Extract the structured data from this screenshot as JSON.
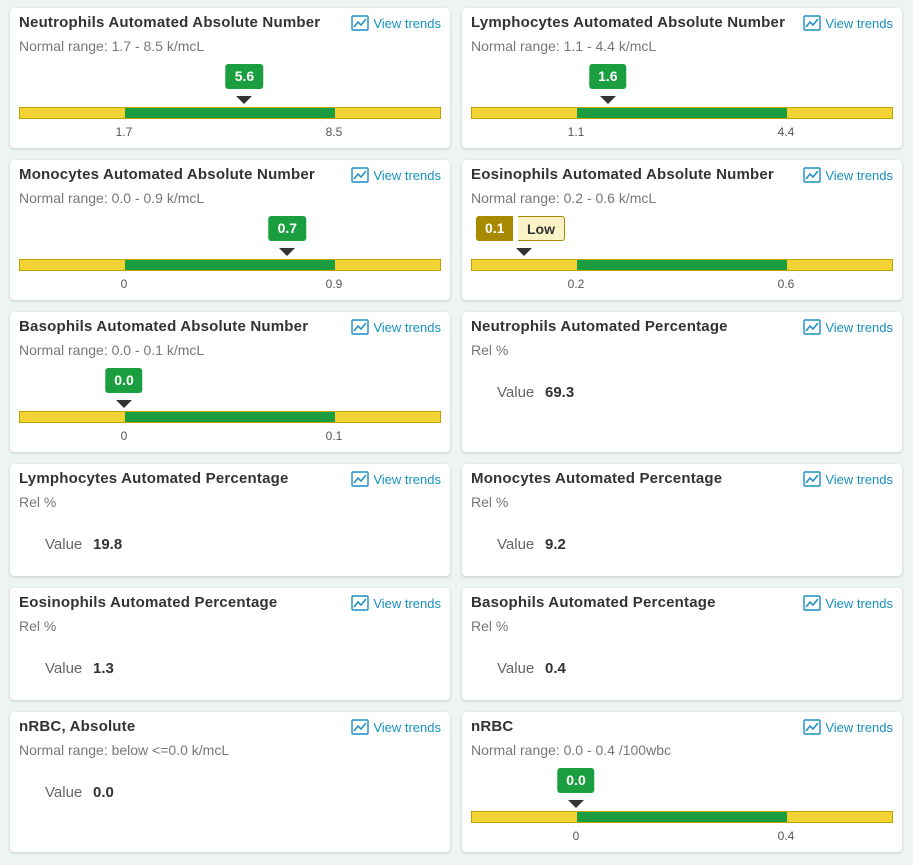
{
  "cards": [
    {
      "title": "Neutrophils Automated Absolute Number",
      "subtitle": "Normal range: 1.7 - 8.5 k/mcL",
      "link": "View trends",
      "value": "5.6",
      "low": "1.7",
      "high": "8.5"
    },
    {
      "title": "Lymphocytes Automated Absolute Number",
      "subtitle": "Normal range: 1.1 - 4.4 k/mcL",
      "link": "View trends",
      "value": "1.6",
      "low": "1.1",
      "high": "4.4"
    },
    {
      "title": "Monocytes Automated Absolute Number",
      "subtitle": "Normal range: 0.0 - 0.9 k/mcL",
      "link": "View trends",
      "value": "0.7",
      "low": "0",
      "high": "0.9"
    },
    {
      "title": "Eosinophils Automated Absolute Number",
      "subtitle": "Normal range: 0.2 - 0.6 k/mcL",
      "link": "View trends",
      "value": "0.1",
      "flag": "Low",
      "low": "0.2",
      "high": "0.6"
    },
    {
      "title": "Basophils Automated Absolute Number",
      "subtitle": "Normal range: 0.0 - 0.1 k/mcL",
      "link": "View trends",
      "value": "0.0",
      "low": "0",
      "high": "0.1"
    },
    {
      "title": "Neutrophils Automated Percentage",
      "subtitle": "Rel %",
      "link": "View trends",
      "value_label": "Value",
      "value": "69.3"
    },
    {
      "title": "Lymphocytes Automated Percentage",
      "subtitle": "Rel %",
      "link": "View trends",
      "value_label": "Value",
      "value": "19.8"
    },
    {
      "title": "Monocytes Automated Percentage",
      "subtitle": "Rel %",
      "link": "View trends",
      "value_label": "Value",
      "value": "9.2"
    },
    {
      "title": "Eosinophils Automated Percentage",
      "subtitle": "Rel %",
      "link": "View trends",
      "value_label": "Value",
      "value": "1.3"
    },
    {
      "title": "Basophils Automated Percentage",
      "subtitle": "Rel %",
      "link": "View trends",
      "value_label": "Value",
      "value": "0.4"
    },
    {
      "title": "nRBC, Absolute",
      "subtitle": "Normal range: below <=0.0 k/mcL",
      "link": "View trends",
      "value_label": "Value",
      "value": "0.0"
    },
    {
      "title": "nRBC",
      "subtitle": "Normal range: 0.0 - 0.4 /100wbc",
      "link": "View trends",
      "value": "0.0",
      "low": "0",
      "high": "0.4"
    }
  ]
}
